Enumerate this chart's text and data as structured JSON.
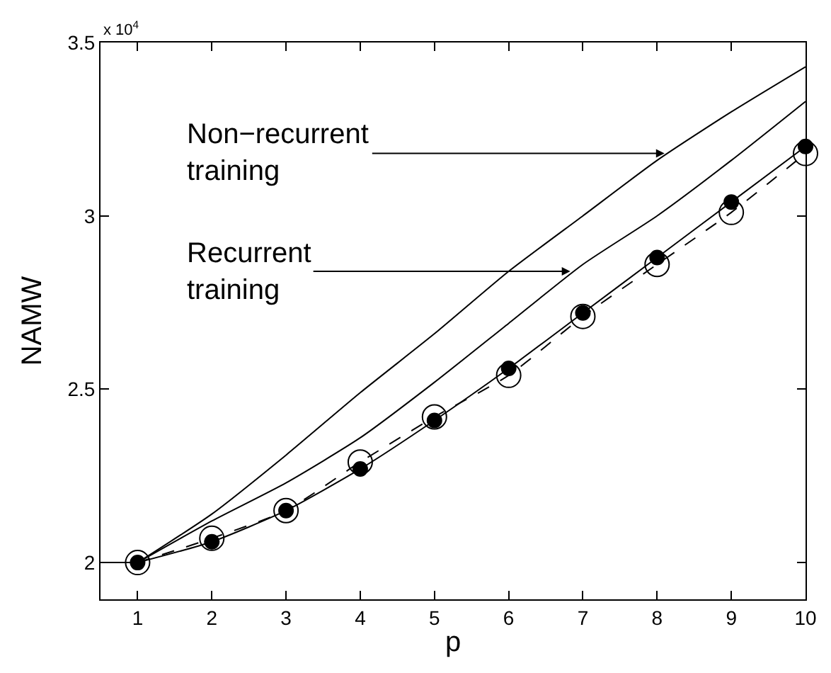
{
  "chart_data": {
    "type": "line",
    "xlabel": "p",
    "ylabel": "NAMW",
    "xlim": [
      0.5,
      10
    ],
    "xticks": [
      1,
      2,
      3,
      4,
      5,
      6,
      7,
      8,
      9,
      10
    ],
    "ylim": [
      1.894,
      3.5
    ],
    "yticks": [
      2,
      2.5,
      3,
      3.5
    ],
    "grid": false,
    "series": [
      {
        "color": "#000000",
        "x": [
          1,
          2,
          3,
          4,
          5,
          6,
          7,
          8,
          9,
          10
        ],
        "values": [
          2.0,
          2.14,
          2.31,
          2.49,
          2.66,
          2.84,
          3.0,
          3.16,
          3.3,
          3.43
        ],
        "line_style": "solid",
        "marker": "none"
      },
      {
        "color": "#000000",
        "x": [
          1,
          2,
          3,
          4,
          5,
          6,
          7,
          8,
          9,
          10
        ],
        "values": [
          2.0,
          2.12,
          2.23,
          2.36,
          2.52,
          2.69,
          2.86,
          3.0,
          3.16,
          3.33
        ],
        "line_style": "solid",
        "marker": "none"
      },
      {
        "color": "#000000",
        "x": [
          0.5,
          1
        ],
        "values": [
          2.0,
          2.0
        ],
        "line_style": "solid",
        "marker": "none"
      },
      {
        "color": "#000000",
        "x": [
          1,
          2,
          3,
          4,
          5,
          6,
          7,
          8,
          9,
          10
        ],
        "values": [
          2.0,
          2.06,
          2.15,
          2.27,
          2.41,
          2.56,
          2.72,
          2.88,
          3.04,
          3.2
        ],
        "line_style": "solid",
        "marker": "circle"
      },
      {
        "color": "#000000",
        "x": [
          1,
          2,
          3,
          4,
          5,
          6,
          7,
          8,
          9,
          10
        ],
        "values": [
          2.0,
          2.07,
          2.15,
          2.29,
          2.42,
          2.54,
          2.71,
          2.86,
          3.01,
          3.18
        ],
        "line_style": "dashed",
        "marker": "circle-open"
      }
    ],
    "annotations": [
      "x 10$^{4}$",
      {
        "text": "Non−recurrent\ntraining",
        "x": 8.1,
        "y": 3.18
      },
      {
        "text": "Recurrent\ntraining",
        "x": 6.83,
        "y": 2.84
      }
    ]
  }
}
